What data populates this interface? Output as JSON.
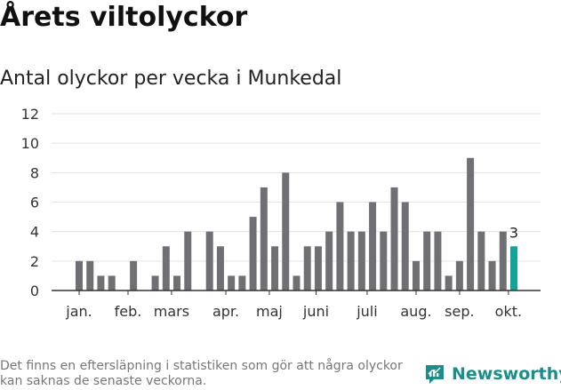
{
  "title": "Årets viltolyckor",
  "subtitle": "Antal olyckor per vecka i Munkedal",
  "footnote": "Det finns en eftersläpning i statistiken som gör att några olyckor kan saknas de senaste veckorna.",
  "brand": {
    "name": "Newsworthy",
    "icon": "newsworthy-logo-icon"
  },
  "colors": {
    "bar": "#707074",
    "highlight": "#14a39b",
    "grid": "#e3e3e3",
    "axis": "#333333",
    "brand": "#1a8f8a"
  },
  "chart_data": {
    "type": "bar",
    "title": "Antal olyckor per vecka i Munkedal",
    "xlabel": "",
    "ylabel": "",
    "ylim": [
      0,
      12
    ],
    "yticks": [
      0,
      2,
      4,
      6,
      8,
      10,
      12
    ],
    "grid": true,
    "legend": "none",
    "weeks": [
      1,
      2,
      3,
      4,
      5,
      6,
      7,
      8,
      9,
      10,
      11,
      12,
      13,
      14,
      15,
      16,
      17,
      18,
      19,
      20,
      21,
      22,
      23,
      24,
      25,
      26,
      27,
      28,
      29,
      30,
      31,
      32,
      33,
      34,
      35,
      36,
      37,
      38,
      39,
      40,
      41
    ],
    "values": [
      2,
      2,
      1,
      1,
      0,
      2,
      0,
      1,
      3,
      1,
      4,
      0,
      4,
      3,
      1,
      1,
      5,
      7,
      3,
      8,
      1,
      3,
      3,
      4,
      6,
      4,
      4,
      6,
      4,
      7,
      6,
      2,
      4,
      4,
      1,
      2,
      9,
      4,
      2,
      4,
      3
    ],
    "month_ticks": [
      {
        "label": "jan.",
        "week": 1
      },
      {
        "label": "feb.",
        "week": 5.5
      },
      {
        "label": "mars",
        "week": 9.5
      },
      {
        "label": "apr.",
        "week": 14.5
      },
      {
        "label": "maj",
        "week": 18.5
      },
      {
        "label": "juni",
        "week": 22.8
      },
      {
        "label": "juli",
        "week": 27.5
      },
      {
        "label": "aug.",
        "week": 32
      },
      {
        "label": "sep.",
        "week": 36
      },
      {
        "label": "okt.",
        "week": 40.5
      }
    ],
    "highlight": {
      "week": 41,
      "value": 3,
      "label": "3"
    }
  }
}
